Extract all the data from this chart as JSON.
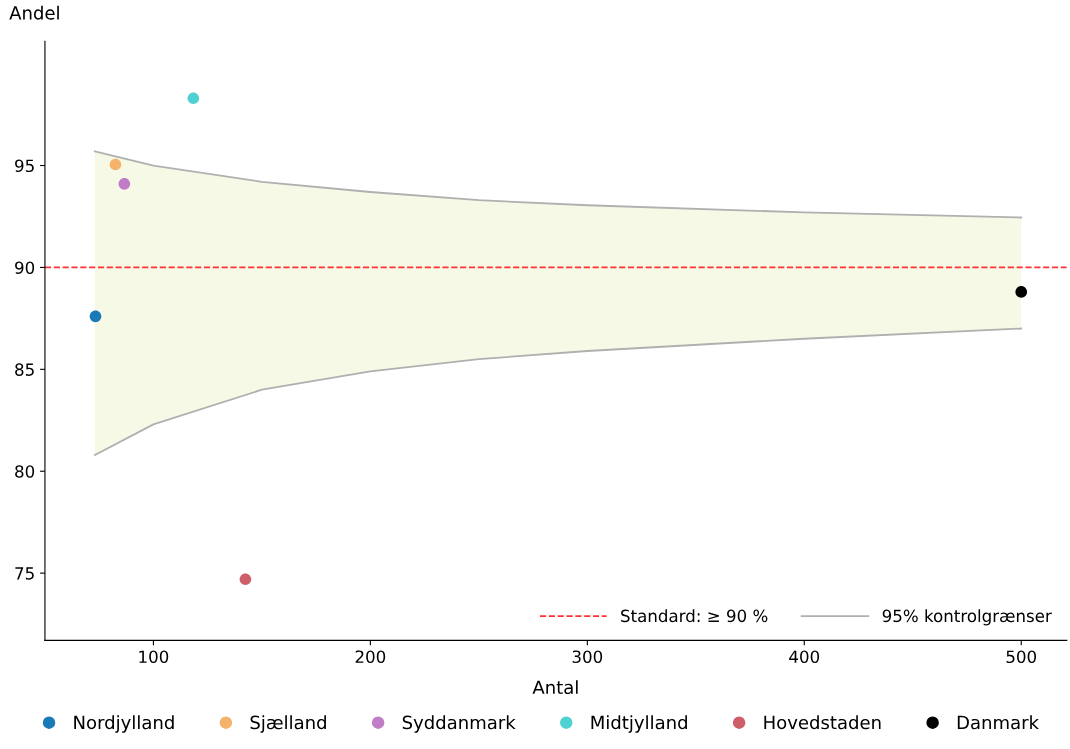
{
  "chart_data": {
    "type": "scatter",
    "xlabel": "Antal",
    "ylabel": "Andel",
    "xlim": [
      50,
      521
    ],
    "ylim": [
      71.7,
      101.1
    ],
    "xticks": [
      100,
      200,
      300,
      400,
      500
    ],
    "yticks": [
      75,
      80,
      85,
      90,
      95
    ],
    "grid": false,
    "legend": "bottom",
    "marker": "circle",
    "ref_lines": [
      {
        "axis": "y",
        "value": 90,
        "label": "Standard: ≥ 90 %",
        "color": "#ff3333",
        "line_style": "dashed"
      }
    ],
    "series": [
      {
        "type": "line",
        "marker": "none",
        "name": "95% kontrolgrænser",
        "color": "#b0b0b0",
        "x": [
          73,
          100,
          150,
          200,
          250,
          300,
          400,
          500
        ],
        "values": [
          95.7,
          95.0,
          94.2,
          93.7,
          93.3,
          93.05,
          92.7,
          92.45
        ],
        "lower": [
          80.8,
          82.3,
          84.0,
          84.9,
          85.5,
          85.9,
          86.5,
          87.0
        ],
        "upper": [
          95.7,
          95.0,
          94.2,
          93.7,
          93.3,
          93.05,
          92.7,
          92.45
        ]
      },
      {
        "type": "line",
        "marker": "none",
        "color": "#b0b0b0",
        "x": [
          73,
          100,
          150,
          200,
          250,
          300,
          400,
          500
        ],
        "values": [
          80.8,
          82.3,
          84.0,
          84.9,
          85.5,
          85.9,
          86.5,
          87.0
        ]
      },
      {
        "name": "Nordjylland",
        "color": "#1a7ab8",
        "x": [
          73.3
        ],
        "values": [
          87.6
        ]
      },
      {
        "name": "Sjælland",
        "color": "#f5b26b",
        "x": [
          82.5
        ],
        "values": [
          95.05
        ]
      },
      {
        "name": "Syddanmark",
        "color": "#c07cc6",
        "x": [
          86.6
        ],
        "values": [
          94.1
        ]
      },
      {
        "name": "Midtjylland",
        "color": "#4fd1d1",
        "x": [
          118.4
        ],
        "values": [
          98.3
        ]
      },
      {
        "name": "Hovedstaden",
        "color": "#cd5f6a",
        "x": [
          142.4
        ],
        "values": [
          74.7
        ]
      },
      {
        "name": "Danmark",
        "color": "#000000",
        "x": [
          500
        ],
        "values": [
          88.8
        ]
      }
    ]
  }
}
